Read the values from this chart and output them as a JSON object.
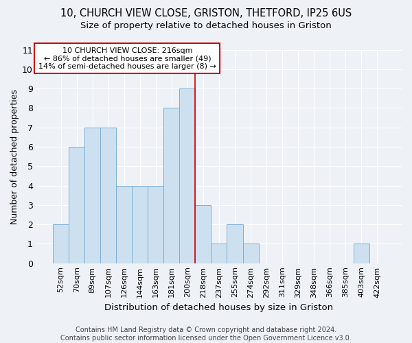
{
  "title": "10, CHURCH VIEW CLOSE, GRISTON, THETFORD, IP25 6US",
  "subtitle": "Size of property relative to detached houses in Griston",
  "xlabel": "Distribution of detached houses by size in Griston",
  "ylabel": "Number of detached properties",
  "bar_labels": [
    "52sqm",
    "70sqm",
    "89sqm",
    "107sqm",
    "126sqm",
    "144sqm",
    "163sqm",
    "181sqm",
    "200sqm",
    "218sqm",
    "237sqm",
    "255sqm",
    "274sqm",
    "292sqm",
    "311sqm",
    "329sqm",
    "348sqm",
    "366sqm",
    "385sqm",
    "403sqm",
    "422sqm"
  ],
  "bar_values": [
    2,
    6,
    7,
    7,
    4,
    4,
    4,
    8,
    9,
    3,
    1,
    2,
    1,
    0,
    0,
    0,
    0,
    0,
    0,
    1,
    0
  ],
  "bar_color": "#cce0f0",
  "bar_edgecolor": "#7bafd4",
  "annotation_text": "10 CHURCH VIEW CLOSE: 216sqm\n← 86% of detached houses are smaller (49)\n14% of semi-detached houses are larger (8) →",
  "annotation_box_color": "#ffffff",
  "annotation_box_edgecolor": "#cc0000",
  "vline_color": "#cc0000",
  "footer": "Contains HM Land Registry data © Crown copyright and database right 2024.\nContains public sector information licensed under the Open Government Licence v3.0.",
  "ylim": [
    0,
    11
  ],
  "background_color": "#eef2f7",
  "grid_color": "#ffffff",
  "title_fontsize": 10.5,
  "subtitle_fontsize": 9.5,
  "axis_label_fontsize": 9,
  "tick_fontsize": 8,
  "footer_fontsize": 7
}
